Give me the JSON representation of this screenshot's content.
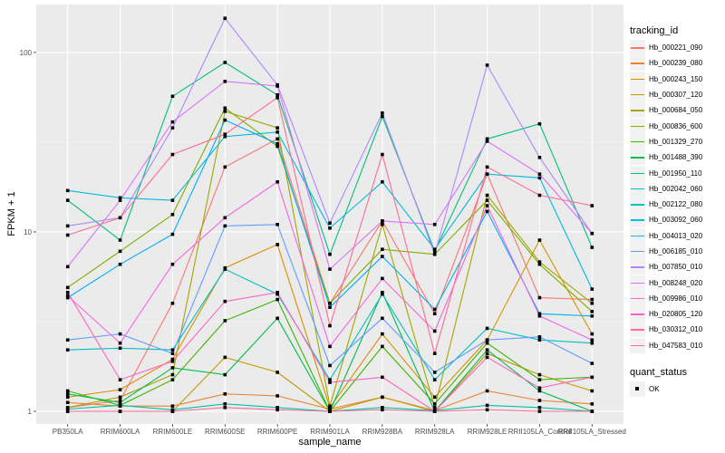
{
  "chart_data": {
    "type": "line",
    "title": "",
    "xlabel": "sample_name",
    "ylabel": "FPKM + 1",
    "yscale": "log10",
    "ylim": [
      0.85,
      185
    ],
    "yticks": [
      1,
      10,
      100
    ],
    "ytick_labels": [
      "1",
      "10",
      "100"
    ],
    "grid": true,
    "legend_position": "right",
    "categories": [
      "PB350LA",
      "RRIM600LA",
      "RRIM600LE",
      "RRIM600SE",
      "RRIM600PE",
      "RRIM901LA",
      "RRIM928BA",
      "RRIM928LA",
      "RRIM928LE",
      "RRII105LA_Control",
      "RRII105LA_Stressed"
    ],
    "color_legend_title": "tracking_id",
    "shape_legend_title": "quant_status",
    "shape_legend_items": [
      "OK"
    ],
    "series": [
      {
        "name": "Hb_000221_090",
        "color": "#F8766D",
        "values": [
          1.05,
          1.15,
          4.0,
          23,
          33,
          4.0,
          11.5,
          3.5,
          21,
          4.3,
          4.2
        ]
      },
      {
        "name": "Hb_000239_080",
        "color": "#EA8331",
        "values": [
          1.12,
          1.07,
          1.07,
          1.25,
          1.22,
          1.03,
          1.2,
          1.01,
          1.3,
          1.15,
          1.1
        ]
      },
      {
        "name": "Hb_000243_150",
        "color": "#D89000",
        "values": [
          1.2,
          1.32,
          1.95,
          6.3,
          8.5,
          1.05,
          2.7,
          1.2,
          2.5,
          9.0,
          2.7
        ]
      },
      {
        "name": "Hb_000307_120",
        "color": "#C09B00",
        "values": [
          1.0,
          1.0,
          1.0,
          2.0,
          1.65,
          1.0,
          1.2,
          1.0,
          2.1,
          1.6,
          1.3
        ]
      },
      {
        "name": "Hb_000684_050",
        "color": "#A3A500",
        "values": [
          1.05,
          1.2,
          1.6,
          47,
          38,
          1.07,
          11,
          1.05,
          16,
          6.8,
          4.0
        ]
      },
      {
        "name": "Hb_000836_600",
        "color": "#7CAE00",
        "values": [
          4.9,
          7.8,
          12.5,
          49,
          30,
          4.0,
          8.0,
          7.5,
          15,
          6.6,
          3.6
        ]
      },
      {
        "name": "Hb_001329_270",
        "color": "#39B600",
        "values": [
          1.3,
          1.08,
          1.5,
          3.2,
          4.2,
          1.0,
          2.3,
          1.1,
          2.4,
          1.5,
          1.55
        ]
      },
      {
        "name": "Hb_001488_390",
        "color": "#00BB4E",
        "values": [
          1.25,
          1.12,
          1.75,
          1.6,
          3.3,
          1.0,
          4.6,
          1.0,
          2.2,
          1.3,
          1.0
        ]
      },
      {
        "name": "Hb_001950_110",
        "color": "#00BF7D",
        "values": [
          15,
          9.0,
          57,
          88,
          58,
          7.5,
          44,
          7.8,
          33,
          40,
          8.2
        ]
      },
      {
        "name": "Hb_002042_060",
        "color": "#00C1A3",
        "values": [
          1.03,
          1.08,
          1.02,
          1.1,
          1.05,
          1.0,
          1.05,
          1.01,
          1.08,
          1.05,
          1.0
        ]
      },
      {
        "name": "Hb_002122_080",
        "color": "#00BFC4",
        "values": [
          2.2,
          2.25,
          2.2,
          6.2,
          4.5,
          1.5,
          4.5,
          1.5,
          2.9,
          2.5,
          2.4
        ]
      },
      {
        "name": "Hb_003092_060",
        "color": "#00B9E3",
        "values": [
          17,
          15.5,
          15,
          34,
          36,
          10.5,
          19,
          8.0,
          21,
          20,
          4.8
        ]
      },
      {
        "name": "Hb_004013_020",
        "color": "#00ADFA",
        "values": [
          4.3,
          6.6,
          9.7,
          42,
          31,
          3.8,
          7.3,
          3.7,
          13,
          3.5,
          3.4
        ]
      },
      {
        "name": "Hb_006185_010",
        "color": "#619CFF",
        "values": [
          2.5,
          2.7,
          2.1,
          10.8,
          11,
          1.8,
          3.3,
          1.65,
          2.5,
          2.6,
          1.85
        ]
      },
      {
        "name": "Hb_007850_010",
        "color": "#AE87FF",
        "values": [
          10.8,
          12,
          38,
          155,
          66,
          11.2,
          46,
          7.5,
          85,
          26,
          9.8
        ]
      },
      {
        "name": "Hb_008248_020",
        "color": "#DB72FB",
        "values": [
          6.4,
          15,
          41,
          69,
          65,
          6.2,
          11.5,
          11,
          32,
          21,
          9.8
        ]
      },
      {
        "name": "Hb_009986_010",
        "color": "#F564E3",
        "values": [
          4.4,
          2.4,
          6.6,
          12,
          19,
          2.3,
          5.5,
          2.8,
          14,
          3.4,
          2.5
        ]
      },
      {
        "name": "Hb_020805_120",
        "color": "#FF61C3",
        "values": [
          4.6,
          1.5,
          1.9,
          4.1,
          4.6,
          1.45,
          1.55,
          1.0,
          2.0,
          1.35,
          1.55
        ]
      },
      {
        "name": "Hb_030312_010",
        "color": "#FF6C91",
        "values": [
          9.6,
          12,
          27,
          35,
          56,
          3.0,
          27,
          2.1,
          23,
          16,
          14
        ]
      },
      {
        "name": "Hb_047583_010",
        "color": "#FF6A98",
        "values": [
          1.0,
          1.0,
          1.0,
          1.05,
          1.02,
          1.0,
          1.02,
          1.0,
          1.02,
          1.0,
          1.0
        ]
      }
    ]
  }
}
